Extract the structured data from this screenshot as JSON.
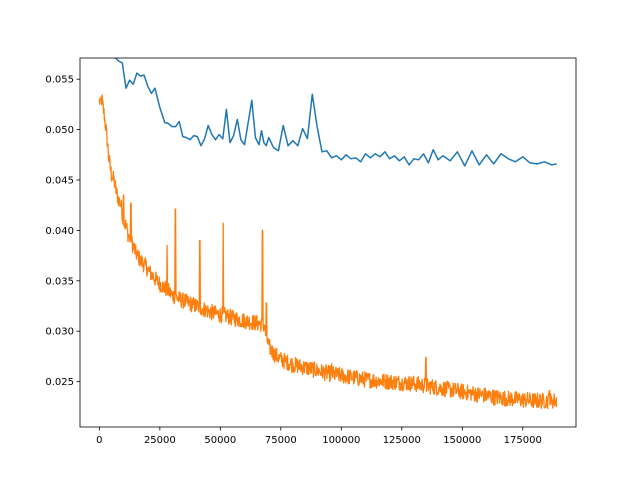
{
  "chart_data": {
    "type": "line",
    "title": "",
    "xlabel": "",
    "ylabel": "",
    "xlim": [
      -8000,
      197000
    ],
    "ylim": [
      0.0205,
      0.0571
    ],
    "grid": false,
    "x_ticks": [
      0,
      25000,
      50000,
      75000,
      100000,
      125000,
      150000,
      175000
    ],
    "x_tick_labels": [
      "0",
      "25000",
      "50000",
      "75000",
      "100000",
      "125000",
      "150000",
      "175000"
    ],
    "y_ticks": [
      0.025,
      0.03,
      0.035,
      0.04,
      0.045,
      0.05,
      0.055
    ],
    "y_tick_labels": [
      "0.025",
      "0.030",
      "0.035",
      "0.040",
      "0.045",
      "0.050",
      "0.055"
    ],
    "series": [
      {
        "color": "#1f77b4",
        "x": [
          5000,
          8000,
          9500,
          11000,
          12500,
          14000,
          15500,
          17000,
          18500,
          20000,
          21500,
          23000,
          25000,
          27000,
          28500,
          30000,
          31500,
          33000,
          34500,
          36000,
          37500,
          39000,
          40500,
          42000,
          43500,
          45000,
          46500,
          48000,
          49500,
          51000,
          52500,
          54000,
          55500,
          57000,
          58500,
          60000,
          61500,
          63000,
          64500,
          66000,
          67000,
          68000,
          69000,
          70000,
          72000,
          74000,
          76000,
          78000,
          80000,
          82000,
          84000,
          86000,
          88000,
          90000,
          92000,
          94000,
          96000,
          98000,
          100000,
          102000,
          104000,
          106000,
          108000,
          110000,
          112000,
          114000,
          116000,
          118000,
          120000,
          122000,
          124000,
          126000,
          128000,
          130000,
          132000,
          134000,
          136000,
          138000,
          140000,
          142000,
          145000,
          148000,
          151000,
          154000,
          157000,
          160000,
          163000,
          166000,
          169000,
          172000,
          175000,
          178000,
          181000,
          184000,
          187000,
          189000
        ],
        "y": [
          0.0575,
          0.0568,
          0.0566,
          0.0541,
          0.0549,
          0.0545,
          0.0556,
          0.0553,
          0.0554,
          0.0543,
          0.0536,
          0.0541,
          0.0522,
          0.0507,
          0.0506,
          0.0503,
          0.0503,
          0.0508,
          0.0493,
          0.0492,
          0.049,
          0.0494,
          0.0493,
          0.0484,
          0.0491,
          0.0504,
          0.0495,
          0.049,
          0.0495,
          0.0491,
          0.052,
          0.0487,
          0.0494,
          0.051,
          0.049,
          0.0485,
          0.0507,
          0.0529,
          0.0492,
          0.0485,
          0.0499,
          0.0487,
          0.0484,
          0.0492,
          0.0482,
          0.0479,
          0.0504,
          0.0484,
          0.0489,
          0.0484,
          0.0501,
          0.0491,
          0.0535,
          0.0503,
          0.0478,
          0.0479,
          0.0472,
          0.0474,
          0.047,
          0.0475,
          0.0471,
          0.0472,
          0.0468,
          0.0476,
          0.0472,
          0.0476,
          0.0473,
          0.0478,
          0.0471,
          0.0474,
          0.0469,
          0.0473,
          0.0465,
          0.0471,
          0.047,
          0.0476,
          0.0467,
          0.048,
          0.047,
          0.0474,
          0.0469,
          0.0478,
          0.0464,
          0.0479,
          0.0465,
          0.0475,
          0.0466,
          0.0476,
          0.0471,
          0.0468,
          0.0473,
          0.0467,
          0.0466,
          0.0468,
          0.0465,
          0.0466
        ]
      },
      {
        "color": "#ff7f0e",
        "x": [
          0,
          1000,
          2000,
          3000,
          4000,
          5000,
          6000,
          7000,
          8000,
          9000,
          10000,
          11000,
          12000,
          13000,
          14000,
          15000,
          17000,
          19000,
          21000,
          23000,
          25000,
          27000,
          28500,
          30000,
          31500,
          33000,
          35000,
          37000,
          39000,
          41000,
          43000,
          45000,
          47000,
          49000,
          51000,
          53000,
          55000,
          57000,
          59000,
          61000,
          63000,
          65000,
          67000,
          68000,
          69000,
          70000,
          72000,
          75000,
          80000,
          85000,
          90000,
          95000,
          100000,
          105000,
          110000,
          115000,
          120000,
          125000,
          130000,
          135000,
          140000,
          145000,
          150000,
          155000,
          160000,
          165000,
          170000,
          175000,
          180000,
          185000,
          189000
        ],
        "y": [
          0.0528,
          0.053,
          0.0515,
          0.0495,
          0.047,
          0.0455,
          0.045,
          0.0438,
          0.043,
          0.0425,
          0.0408,
          0.0405,
          0.0395,
          0.039,
          0.0385,
          0.0378,
          0.037,
          0.0365,
          0.0358,
          0.0352,
          0.0347,
          0.0343,
          0.034,
          0.0336,
          0.0334,
          0.0332,
          0.033,
          0.0328,
          0.0326,
          0.0324,
          0.0322,
          0.032,
          0.0318,
          0.0317,
          0.0316,
          0.0315,
          0.0313,
          0.0312,
          0.0311,
          0.031,
          0.0309,
          0.0308,
          0.0307,
          0.0306,
          0.0295,
          0.0285,
          0.0278,
          0.0272,
          0.0267,
          0.0264,
          0.0261,
          0.0258,
          0.0256,
          0.0254,
          0.0252,
          0.0251,
          0.025,
          0.0249,
          0.0248,
          0.0246,
          0.0244,
          0.0242,
          0.024,
          0.0238,
          0.0236,
          0.0234,
          0.0233,
          0.0232,
          0.0231,
          0.0231,
          0.0231
        ],
        "spikes": [
          {
            "x": 600,
            "y": 0.0531
          },
          {
            "x": 10000,
            "y": 0.0435
          },
          {
            "x": 13000,
            "y": 0.0427
          },
          {
            "x": 28000,
            "y": 0.0385
          },
          {
            "x": 31500,
            "y": 0.0421
          },
          {
            "x": 41500,
            "y": 0.039
          },
          {
            "x": 51200,
            "y": 0.0407
          },
          {
            "x": 67500,
            "y": 0.04
          },
          {
            "x": 69000,
            "y": 0.0328
          },
          {
            "x": 96000,
            "y": 0.0268
          },
          {
            "x": 135000,
            "y": 0.0274
          },
          {
            "x": 186000,
            "y": 0.0241
          }
        ]
      }
    ]
  }
}
